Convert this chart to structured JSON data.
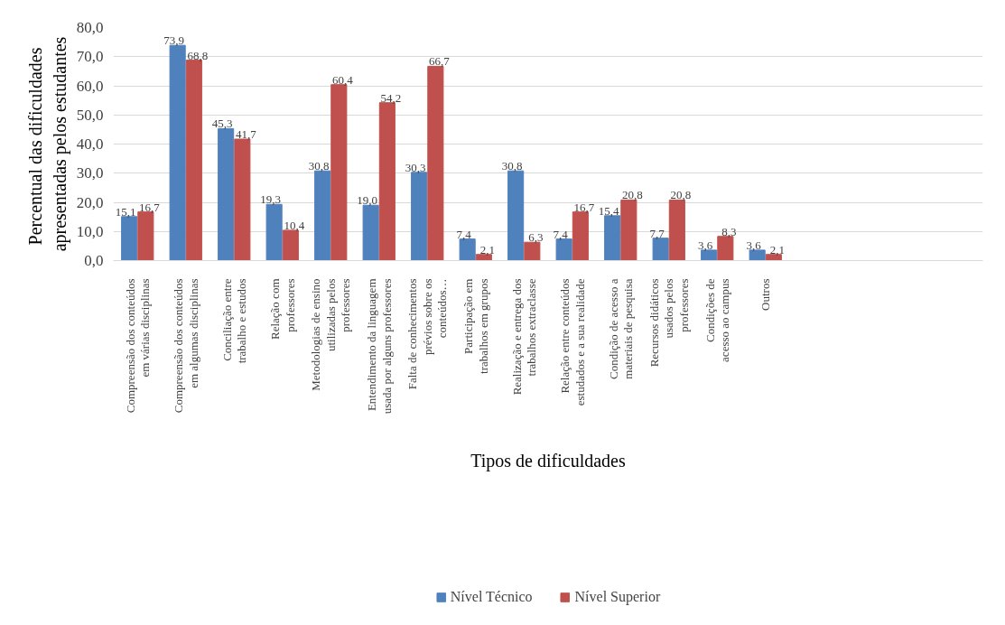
{
  "chart_data": {
    "type": "bar",
    "xlabel": "Tipos de dificuldades",
    "ylabel": "Percentual  das dificuldades apresentadas pelos estudantes",
    "categories": [
      "Compreensão dos conteúdos em várias disciplinas",
      "Compreensão dos conteúdos em algumas disciplinas",
      "Conciliação entre trabalho e estudos",
      "Relação com professores",
      "Metodologias de ensino utilizadas pelos professores",
      "Entendimento da linguagem usada por alguns professores",
      "Falta de conhecimentos prévios sobre os conteúdos…",
      "Participação em trabalhos em grupos",
      "Realização e entrega dos trabalhos extraclasse",
      "Relação entre conteúdos estudados e a sua realidade",
      "Condição de acesso a materiais de pesquisa",
      "Recursos didáticos usados pelos professores",
      "Condições de acesso ao campus",
      "Outros",
      null,
      null,
      null,
      null
    ],
    "series": [
      {
        "name": "Nível Técnico",
        "color": "#4f81bd",
        "values": [
          15.1,
          73.9,
          45.3,
          19.3,
          30.8,
          19.0,
          30.3,
          7.4,
          30.8,
          7.4,
          15.4,
          7.7,
          3.6,
          3.6,
          null,
          null,
          null,
          null
        ],
        "value_labels": [
          "15,1",
          "73,9",
          "45,3",
          "19,3",
          "30,8",
          "19,0",
          "30,3",
          "7,4",
          "30,8",
          "7,4",
          "15,4",
          "7,7",
          "3,6",
          "3,6",
          null,
          null,
          null,
          null
        ]
      },
      {
        "name": "Nível Superior",
        "color": "#c0504d",
        "values": [
          16.7,
          68.8,
          41.7,
          10.4,
          60.4,
          54.2,
          66.7,
          2.1,
          6.3,
          16.7,
          20.8,
          20.8,
          8.3,
          2.1,
          null,
          null,
          null,
          null
        ],
        "value_labels": [
          "16,7",
          "68,8",
          "41,7",
          "10,4",
          "60,4",
          "54,2",
          "66,7",
          "2,1",
          "6,3",
          "16,7",
          "20,8",
          "20,8",
          "8,3",
          "2,1",
          null,
          null,
          null,
          null
        ]
      }
    ],
    "ylim": [
      0,
      80
    ],
    "yticks": [
      {
        "value": 0,
        "label": "0,0"
      },
      {
        "value": 10,
        "label": "10,0"
      },
      {
        "value": 20,
        "label": "20,0"
      },
      {
        "value": 30,
        "label": "30,0"
      },
      {
        "value": 40,
        "label": "40,0"
      },
      {
        "value": 50,
        "label": "50,0"
      },
      {
        "value": 60,
        "label": "60,0"
      },
      {
        "value": 70,
        "label": "70,0"
      },
      {
        "value": 80,
        "label": "80,0"
      }
    ],
    "grid": "y",
    "legend": "bottom"
  }
}
